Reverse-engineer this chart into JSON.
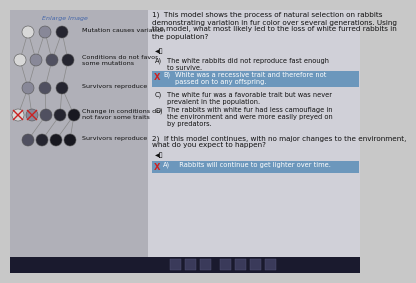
{
  "title_link": "Enlarge Image",
  "left_labels": [
    "Mutation causes variation",
    "Conditions do not favor\nsome mutations",
    "Survivors reproduce",
    "Change in conditions do\nnot favor some traits",
    "Survivors reproduce"
  ],
  "q1_text": "1)  This model shows the process of natural selection on rabbits\ndemonstrating variation in fur color over several generations. Using\nthe model, what most likely led to the loss of white furred rabbits in\nthe population?",
  "q1_options": [
    [
      "A)",
      "The white rabbits did not reproduce fast enough\nto survive."
    ],
    [
      "B)",
      "White was a recessive trait and therefore not\npassed on to any offspring."
    ],
    [
      "C)",
      "The white fur was a favorable trait but was never\nprevalent in the population."
    ],
    [
      "D)",
      "The rabbits with white fur had less camouflage in\nthe environment and were more easily preyed on\nby predators."
    ]
  ],
  "q2_text": "2)  If this model continues, with no major changes to the environment,\nwhat do you expect to happen?",
  "q2_answer": "A)   Rabbits will continue to get lighter over time.",
  "bg_color": "#c8c8c8",
  "left_bg": "#b0b0b8",
  "right_bg": "#d0d0d8",
  "highlight_b_color": "#5b8db8",
  "highlight_a2_color": "#5b8db8",
  "text_color": "#111111",
  "title_color": "#4466aa",
  "selected_x_color": "#cc2222",
  "node_colors_row1": [
    "#e8e8e8",
    "#555566",
    "#222233"
  ],
  "node_colors_row2": [
    "#e8e8e8",
    "#555566",
    "#333344",
    "#111122"
  ],
  "node_colors_row3": [
    "#555566",
    "#333344",
    "#111122"
  ],
  "node_colors_row4_elim": [
    "#e8e8e8",
    "#555566"
  ],
  "node_colors_row4_keep": [
    "#333344",
    "#111122",
    "#111122"
  ],
  "node_colors_row5": [
    "#333344",
    "#222233",
    "#111122",
    "#111122"
  ],
  "font_size_main": 5.2,
  "font_size_label": 4.6,
  "font_size_option": 4.8
}
